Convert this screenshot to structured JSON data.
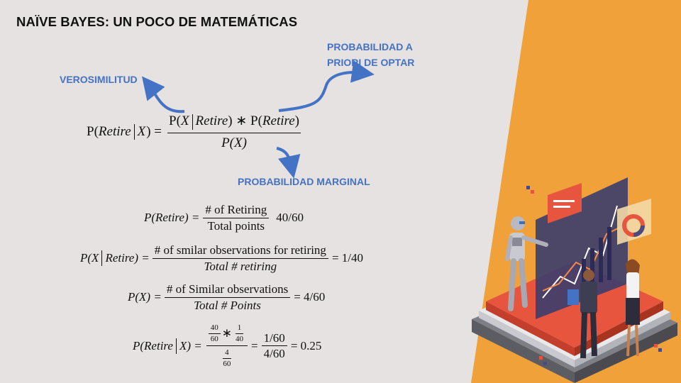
{
  "slide": {
    "title": "NAÏVE BAYES: UN POCO DE MATEMÁTICAS",
    "annotations": {
      "likelihood": "VEROSIMILITUD",
      "prior_line1": "PROBABILIDAD A",
      "prior_line2": "PRIORI DE OPTAR",
      "marginal": "PROBABILIDAD MARGINAL"
    },
    "colors": {
      "background": "#e6e2e1",
      "accent_orange": "#f0a13a",
      "annotation_blue": "#4472c4"
    }
  },
  "formulas": {
    "bayes": {
      "lhs_P": "P(",
      "lhs_retire": "Retire",
      "lhs_X": "X",
      "lhs_close": ") =",
      "num_P": "P(",
      "num_X": "X",
      "num_retire": "Retire",
      "num_mid": ") ∗ P(",
      "num_retire2": "Retire",
      "num_close": ")",
      "den": "P(X)"
    },
    "prior": {
      "lhs": "P(Retire) =",
      "num": "# of Retiring",
      "den": "Total points",
      "result": "40/60"
    },
    "likelihood": {
      "lhs_a": "P(X",
      "lhs_b": "Retire) =",
      "num": "# of smilar observations for retiring",
      "den": "Total # retiring",
      "result": "= 1/40"
    },
    "marginal": {
      "lhs": "P(X) =",
      "num": "# of Similar observations",
      "den": "Total # Points",
      "result": "= 4/60"
    },
    "posterior": {
      "lhs_a": "P(Retire",
      "lhs_b": "X) =",
      "n1_num": "40",
      "n1_den": "60",
      "star": "∗",
      "n2_num": "1",
      "n2_den": "40",
      "d_num": "4",
      "d_den": "60",
      "eq1": "=",
      "f2_num": "1/60",
      "f2_den": "4/60",
      "result": "= 0.25"
    }
  }
}
